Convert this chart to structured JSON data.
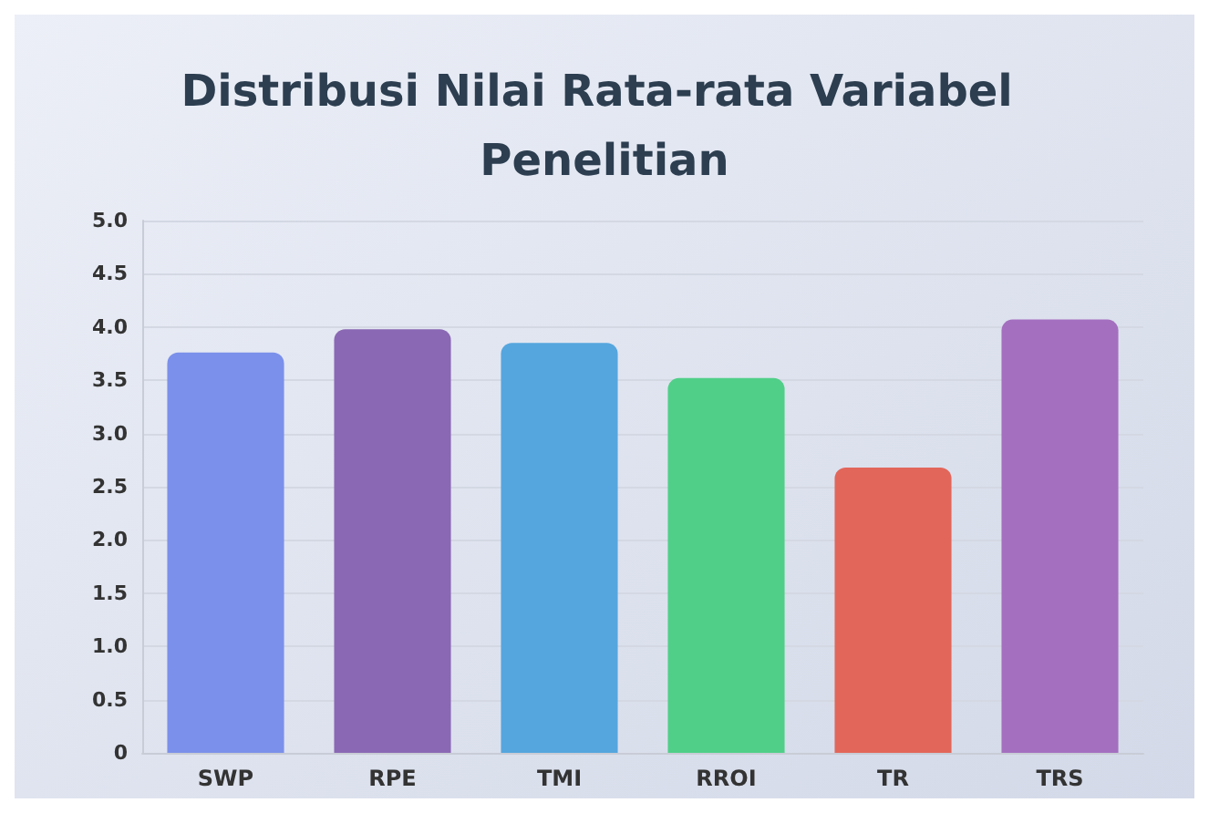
{
  "chart_data": {
    "type": "bar",
    "title": "Distribusi Nilai Rata-rata Variabel Penelitian",
    "categories": [
      "SWP",
      "RPE",
      "TMI",
      "RROI",
      "TR",
      "TRS"
    ],
    "values": [
      3.76,
      3.98,
      3.85,
      3.52,
      2.68,
      4.07
    ],
    "colors": [
      "#7b90ea",
      "#8a68b4",
      "#55a6de",
      "#50cf88",
      "#e2665a",
      "#a46fbf"
    ],
    "ylim": [
      0,
      5
    ],
    "yticks": [
      0,
      {
        "value": 0.5,
        "label": "0.5"
      },
      {
        "value": 1,
        "label": "1.0"
      },
      {
        "value": 1.5,
        "label": "1.5"
      },
      {
        "value": 2,
        "label": "2.0"
      },
      {
        "value": 2.5,
        "label": "2.5"
      },
      {
        "value": 3,
        "label": "3.0"
      },
      {
        "value": 3.5,
        "label": "3.5"
      },
      {
        "value": 4,
        "label": "4.0"
      },
      {
        "value": 4.5,
        "label": "4.5"
      },
      {
        "value": 5,
        "label": "5.0"
      }
    ],
    "grid": "y"
  }
}
